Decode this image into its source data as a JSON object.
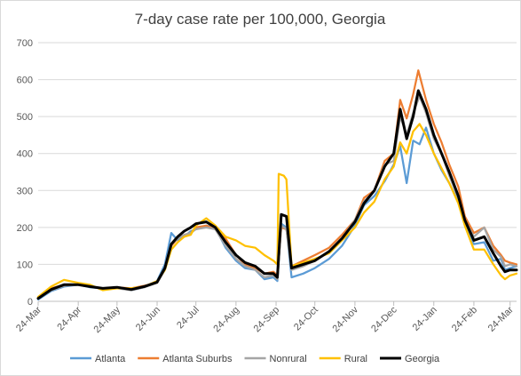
{
  "chart_data": {
    "type": "line",
    "title": "7-day case rate per 100,000, Georgia",
    "xlabel": "",
    "ylabel": "",
    "ylim": [
      0,
      700
    ],
    "y_ticks": [
      0,
      100,
      200,
      300,
      400,
      500,
      600,
      700
    ],
    "x_ticks": [
      "24-Mar",
      "24-Apr",
      "24-May",
      "24-Jun",
      "24-Jul",
      "24-Aug",
      "24-Sep",
      "24-Oct",
      "24-Nov",
      "24-Dec",
      "24-Jan",
      "24-Feb",
      "24-Mar"
    ],
    "x_tick_offsets": [
      0,
      31,
      61,
      92,
      122,
      153,
      184,
      214,
      245,
      275,
      306,
      337,
      365
    ],
    "x_total_days": 370,
    "grid": "horizontal",
    "legend_position": "bottom",
    "series": [
      {
        "name": "Atlanta",
        "color": "#5B9BD5",
        "points": [
          [
            0,
            5
          ],
          [
            10,
            28
          ],
          [
            20,
            40
          ],
          [
            31,
            45
          ],
          [
            40,
            38
          ],
          [
            50,
            35
          ],
          [
            61,
            38
          ],
          [
            72,
            30
          ],
          [
            82,
            38
          ],
          [
            92,
            55
          ],
          [
            98,
            100
          ],
          [
            103,
            185
          ],
          [
            108,
            165
          ],
          [
            113,
            175
          ],
          [
            118,
            190
          ],
          [
            122,
            195
          ],
          [
            130,
            205
          ],
          [
            137,
            200
          ],
          [
            145,
            145
          ],
          [
            153,
            110
          ],
          [
            160,
            90
          ],
          [
            168,
            85
          ],
          [
            175,
            60
          ],
          [
            182,
            65
          ],
          [
            185,
            55
          ],
          [
            188,
            210
          ],
          [
            192,
            200
          ],
          [
            196,
            65
          ],
          [
            205,
            75
          ],
          [
            214,
            90
          ],
          [
            225,
            115
          ],
          [
            235,
            150
          ],
          [
            245,
            205
          ],
          [
            252,
            260
          ],
          [
            260,
            285
          ],
          [
            268,
            325
          ],
          [
            275,
            370
          ],
          [
            280,
            420
          ],
          [
            285,
            320
          ],
          [
            290,
            435
          ],
          [
            295,
            425
          ],
          [
            300,
            470
          ],
          [
            306,
            400
          ],
          [
            312,
            355
          ],
          [
            318,
            320
          ],
          [
            325,
            270
          ],
          [
            330,
            215
          ],
          [
            337,
            155
          ],
          [
            345,
            160
          ],
          [
            352,
            110
          ],
          [
            358,
            115
          ],
          [
            361,
            85
          ],
          [
            365,
            90
          ],
          [
            370,
            95
          ]
        ]
      },
      {
        "name": "Atlanta Suburbs",
        "color": "#ED7D31",
        "points": [
          [
            0,
            10
          ],
          [
            10,
            35
          ],
          [
            20,
            45
          ],
          [
            31,
            45
          ],
          [
            40,
            40
          ],
          [
            50,
            35
          ],
          [
            61,
            38
          ],
          [
            72,
            35
          ],
          [
            82,
            42
          ],
          [
            92,
            50
          ],
          [
            98,
            90
          ],
          [
            103,
            150
          ],
          [
            108,
            170
          ],
          [
            113,
            180
          ],
          [
            118,
            185
          ],
          [
            122,
            200
          ],
          [
            130,
            205
          ],
          [
            137,
            195
          ],
          [
            145,
            170
          ],
          [
            153,
            125
          ],
          [
            160,
            100
          ],
          [
            168,
            90
          ],
          [
            175,
            75
          ],
          [
            182,
            80
          ],
          [
            185,
            70
          ],
          [
            188,
            200
          ],
          [
            192,
            195
          ],
          [
            196,
            95
          ],
          [
            205,
            110
          ],
          [
            214,
            125
          ],
          [
            225,
            145
          ],
          [
            235,
            180
          ],
          [
            245,
            220
          ],
          [
            252,
            280
          ],
          [
            260,
            300
          ],
          [
            268,
            380
          ],
          [
            275,
            400
          ],
          [
            280,
            545
          ],
          [
            285,
            495
          ],
          [
            290,
            560
          ],
          [
            294,
            625
          ],
          [
            300,
            545
          ],
          [
            306,
            480
          ],
          [
            312,
            430
          ],
          [
            318,
            370
          ],
          [
            325,
            310
          ],
          [
            330,
            230
          ],
          [
            337,
            185
          ],
          [
            345,
            200
          ],
          [
            352,
            150
          ],
          [
            358,
            125
          ],
          [
            361,
            110
          ],
          [
            365,
            105
          ],
          [
            370,
            100
          ]
        ]
      },
      {
        "name": "Nonrural",
        "color": "#A5A5A5",
        "points": [
          [
            0,
            8
          ],
          [
            10,
            30
          ],
          [
            20,
            42
          ],
          [
            31,
            45
          ],
          [
            40,
            40
          ],
          [
            50,
            35
          ],
          [
            61,
            35
          ],
          [
            72,
            30
          ],
          [
            82,
            38
          ],
          [
            92,
            50
          ],
          [
            98,
            85
          ],
          [
            103,
            155
          ],
          [
            108,
            170
          ],
          [
            113,
            180
          ],
          [
            118,
            185
          ],
          [
            122,
            195
          ],
          [
            130,
            200
          ],
          [
            137,
            195
          ],
          [
            145,
            150
          ],
          [
            153,
            115
          ],
          [
            160,
            95
          ],
          [
            168,
            85
          ],
          [
            175,
            65
          ],
          [
            182,
            70
          ],
          [
            185,
            60
          ],
          [
            188,
            205
          ],
          [
            192,
            195
          ],
          [
            196,
            85
          ],
          [
            205,
            95
          ],
          [
            214,
            110
          ],
          [
            225,
            135
          ],
          [
            235,
            170
          ],
          [
            245,
            220
          ],
          [
            252,
            270
          ],
          [
            260,
            300
          ],
          [
            268,
            370
          ],
          [
            275,
            380
          ],
          [
            280,
            500
          ],
          [
            285,
            450
          ],
          [
            290,
            510
          ],
          [
            295,
            555
          ],
          [
            300,
            510
          ],
          [
            306,
            440
          ],
          [
            312,
            400
          ],
          [
            318,
            340
          ],
          [
            325,
            280
          ],
          [
            330,
            220
          ],
          [
            337,
            175
          ],
          [
            345,
            200
          ],
          [
            352,
            140
          ],
          [
            358,
            120
          ],
          [
            361,
            95
          ],
          [
            365,
            100
          ],
          [
            370,
            95
          ]
        ]
      },
      {
        "name": "Rural",
        "color": "#FFC000",
        "points": [
          [
            0,
            12
          ],
          [
            10,
            40
          ],
          [
            20,
            58
          ],
          [
            31,
            50
          ],
          [
            40,
            45
          ],
          [
            50,
            30
          ],
          [
            61,
            35
          ],
          [
            72,
            35
          ],
          [
            82,
            40
          ],
          [
            92,
            55
          ],
          [
            98,
            85
          ],
          [
            103,
            140
          ],
          [
            108,
            160
          ],
          [
            113,
            175
          ],
          [
            118,
            180
          ],
          [
            122,
            205
          ],
          [
            130,
            225
          ],
          [
            137,
            205
          ],
          [
            145,
            175
          ],
          [
            153,
            165
          ],
          [
            160,
            150
          ],
          [
            168,
            145
          ],
          [
            175,
            125
          ],
          [
            182,
            110
          ],
          [
            185,
            100
          ],
          [
            186,
            345
          ],
          [
            190,
            340
          ],
          [
            192,
            330
          ],
          [
            196,
            95
          ],
          [
            205,
            105
          ],
          [
            214,
            115
          ],
          [
            225,
            130
          ],
          [
            235,
            165
          ],
          [
            245,
            200
          ],
          [
            252,
            240
          ],
          [
            260,
            270
          ],
          [
            268,
            330
          ],
          [
            275,
            365
          ],
          [
            280,
            430
          ],
          [
            285,
            400
          ],
          [
            290,
            460
          ],
          [
            295,
            480
          ],
          [
            300,
            450
          ],
          [
            306,
            400
          ],
          [
            312,
            360
          ],
          [
            318,
            320
          ],
          [
            325,
            265
          ],
          [
            330,
            205
          ],
          [
            337,
            140
          ],
          [
            345,
            140
          ],
          [
            352,
            100
          ],
          [
            358,
            70
          ],
          [
            361,
            60
          ],
          [
            365,
            70
          ],
          [
            370,
            75
          ]
        ]
      },
      {
        "name": "Georgia",
        "color": "#000000",
        "points": [
          [
            0,
            8
          ],
          [
            10,
            32
          ],
          [
            20,
            45
          ],
          [
            31,
            45
          ],
          [
            40,
            40
          ],
          [
            50,
            35
          ],
          [
            61,
            38
          ],
          [
            72,
            32
          ],
          [
            82,
            40
          ],
          [
            92,
            52
          ],
          [
            98,
            90
          ],
          [
            103,
            155
          ],
          [
            108,
            175
          ],
          [
            113,
            190
          ],
          [
            118,
            200
          ],
          [
            122,
            210
          ],
          [
            130,
            215
          ],
          [
            137,
            200
          ],
          [
            145,
            160
          ],
          [
            153,
            125
          ],
          [
            160,
            105
          ],
          [
            168,
            95
          ],
          [
            175,
            75
          ],
          [
            182,
            75
          ],
          [
            185,
            65
          ],
          [
            188,
            235
          ],
          [
            192,
            230
          ],
          [
            196,
            90
          ],
          [
            205,
            100
          ],
          [
            214,
            110
          ],
          [
            225,
            135
          ],
          [
            235,
            170
          ],
          [
            245,
            215
          ],
          [
            252,
            265
          ],
          [
            260,
            300
          ],
          [
            268,
            365
          ],
          [
            275,
            400
          ],
          [
            280,
            520
          ],
          [
            285,
            440
          ],
          [
            290,
            500
          ],
          [
            294,
            570
          ],
          [
            300,
            520
          ],
          [
            306,
            450
          ],
          [
            312,
            400
          ],
          [
            318,
            350
          ],
          [
            325,
            285
          ],
          [
            330,
            220
          ],
          [
            337,
            165
          ],
          [
            345,
            175
          ],
          [
            352,
            130
          ],
          [
            358,
            95
          ],
          [
            361,
            80
          ],
          [
            365,
            85
          ],
          [
            370,
            85
          ]
        ]
      }
    ]
  }
}
